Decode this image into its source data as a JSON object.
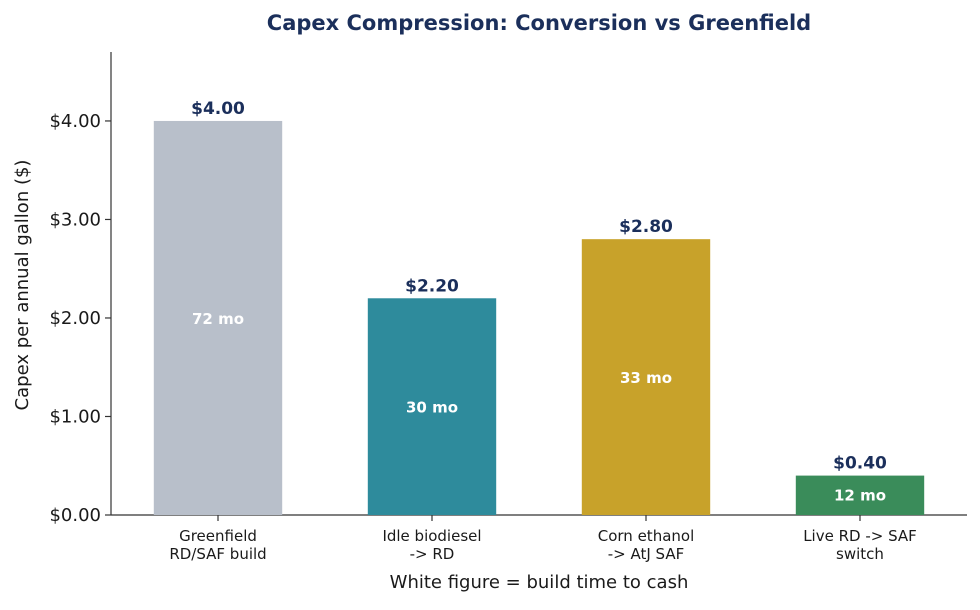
{
  "chart_data": {
    "type": "bar",
    "title": "Capex Compression: Conversion vs Greenfield",
    "xlabel": "White figure = build time to cash",
    "ylabel": "Capex per annual gallon ($)",
    "ylim": [
      0,
      4.7
    ],
    "yticks": [
      "$0.00",
      "$1.00",
      "$2.00",
      "$3.00",
      "$4.00"
    ],
    "ytick_values": [
      0,
      1,
      2,
      3,
      4
    ],
    "grid": false,
    "categories": [
      [
        "Greenfield",
        "RD/SAF build"
      ],
      [
        "Idle biodiesel",
        "-> RD"
      ],
      [
        "Corn ethanol",
        "-> AtJ SAF"
      ],
      [
        "Live RD -> SAF",
        "switch"
      ]
    ],
    "values": [
      4.0,
      2.2,
      2.8,
      0.4
    ],
    "value_labels": [
      "$4.00",
      "$2.20",
      "$2.80",
      "$0.40"
    ],
    "build_time_labels": [
      "72 mo",
      "30 mo",
      "33 mo",
      "12 mo"
    ],
    "colors": [
      "#b8bfca",
      "#2e8b9c",
      "#c8a22a",
      "#3a8c5a"
    ]
  }
}
